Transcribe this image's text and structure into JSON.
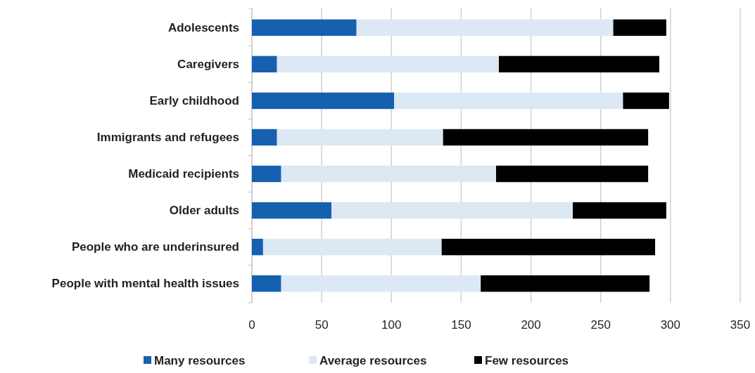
{
  "chart_data": {
    "type": "bar",
    "orientation": "horizontal",
    "stacked": true,
    "categories": [
      "Adolescents",
      "Caregivers",
      "Early childhood",
      "Immigrants and refugees",
      "Medicaid recipients",
      "Older adults",
      "People who are underinsured",
      "People with mental health issues"
    ],
    "series": [
      {
        "name": "Many resources",
        "color": "#1660b0",
        "values": [
          75,
          18,
          102,
          18,
          21,
          57,
          8,
          21
        ]
      },
      {
        "name": "Average resources",
        "color": "#dce8f4",
        "values": [
          184,
          159,
          164,
          119,
          154,
          173,
          128,
          143
        ]
      },
      {
        "name": "Few resources",
        "color": "#000000",
        "values": [
          38,
          115,
          33,
          147,
          109,
          67,
          153,
          121
        ]
      }
    ],
    "xlim": [
      0,
      350
    ],
    "xticks": [
      0,
      50,
      100,
      150,
      200,
      250,
      300,
      350
    ],
    "grid": "x",
    "legend": "bottom"
  }
}
